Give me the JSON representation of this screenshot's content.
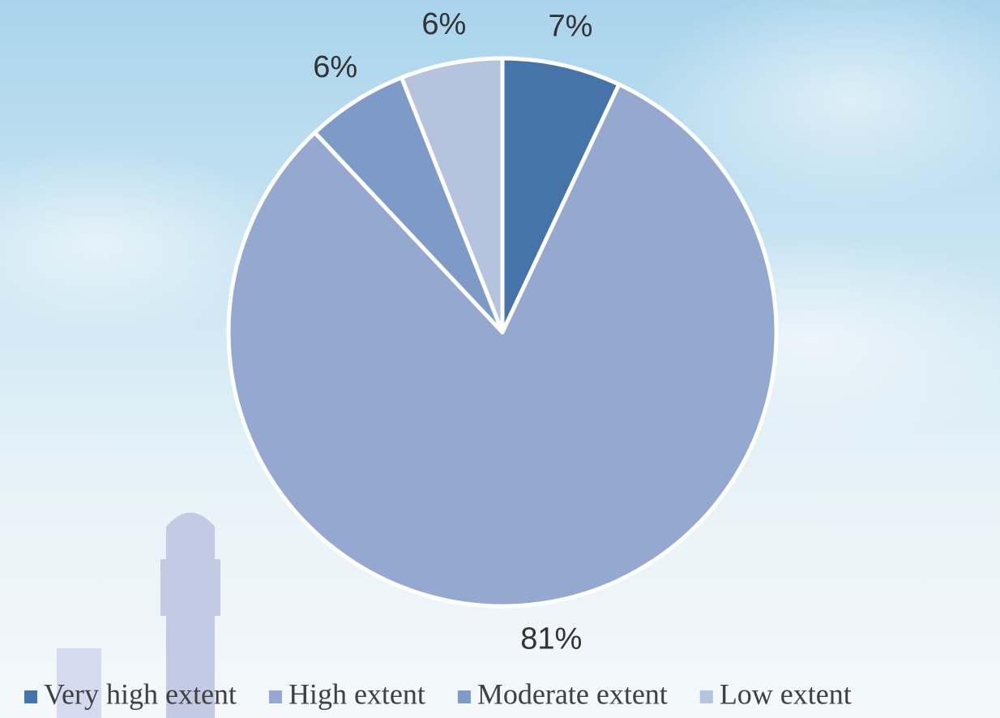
{
  "chart_data": {
    "type": "pie",
    "categories": [
      "Very high extent",
      "High extent",
      "Moderate extent",
      "Low extent"
    ],
    "values": [
      7,
      81,
      6,
      6
    ],
    "value_labels": [
      "7%",
      "81%",
      "6%",
      "6%"
    ],
    "colors": [
      "#4673a8",
      "#95a9d0",
      "#7e9bc7",
      "#b5c3df"
    ],
    "legend": "bottom"
  }
}
